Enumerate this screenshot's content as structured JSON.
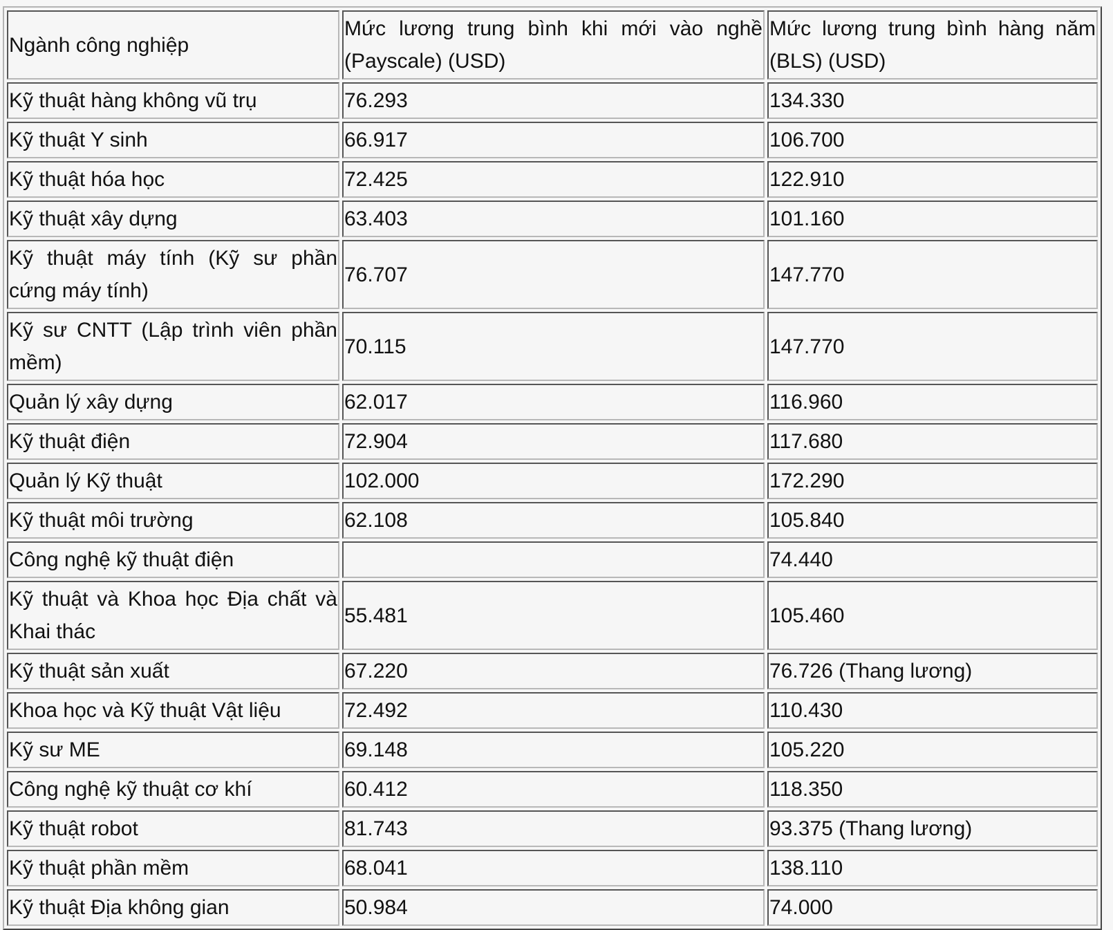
{
  "table": {
    "headers": [
      "Ngành công nghiệp",
      "Mức lương trung bình khi mới vào nghề (Payscale) (USD)",
      "Mức lương trung bình hàng năm (BLS) (USD)"
    ],
    "rows": [
      [
        "Kỹ thuật hàng không vũ trụ",
        "76.293",
        "134.330"
      ],
      [
        "Kỹ thuật Y sinh",
        "66.917",
        "106.700"
      ],
      [
        "Kỹ thuật hóa học",
        "72.425",
        "122.910"
      ],
      [
        "Kỹ thuật xây dựng",
        "63.403",
        "101.160"
      ],
      [
        "Kỹ thuật máy tính (Kỹ sư phần cứng máy tính)",
        "76.707",
        "147.770"
      ],
      [
        "Kỹ sư CNTT (Lập trình viên phần mềm)",
        "70.115",
        "147.770"
      ],
      [
        "Quản lý xây dựng",
        "62.017",
        "116.960"
      ],
      [
        "Kỹ thuật điện",
        "72.904",
        "117.680"
      ],
      [
        "Quản lý Kỹ thuật",
        "102.000",
        "172.290"
      ],
      [
        "Kỹ thuật môi trường",
        "62.108",
        "105.840"
      ],
      [
        "Công nghệ kỹ thuật điện",
        "",
        "74.440"
      ],
      [
        "Kỹ thuật và Khoa học Địa chất và Khai thác",
        "55.481",
        "105.460"
      ],
      [
        "Kỹ thuật sản xuất",
        "67.220",
        "76.726 (Thang lương)"
      ],
      [
        "Khoa học và Kỹ thuật Vật liệu",
        "72.492",
        "110.430"
      ],
      [
        "Kỹ sư ME",
        "69.148",
        "105.220"
      ],
      [
        "Công nghệ kỹ thuật cơ khí",
        "60.412",
        "118.350"
      ],
      [
        "Kỹ thuật robot",
        "81.743",
        "93.375 (Thang lương)"
      ],
      [
        "Kỹ thuật phần mềm",
        "68.041",
        "138.110"
      ],
      [
        "Kỹ thuật Địa không gian",
        "50.984",
        "74.000"
      ]
    ]
  }
}
